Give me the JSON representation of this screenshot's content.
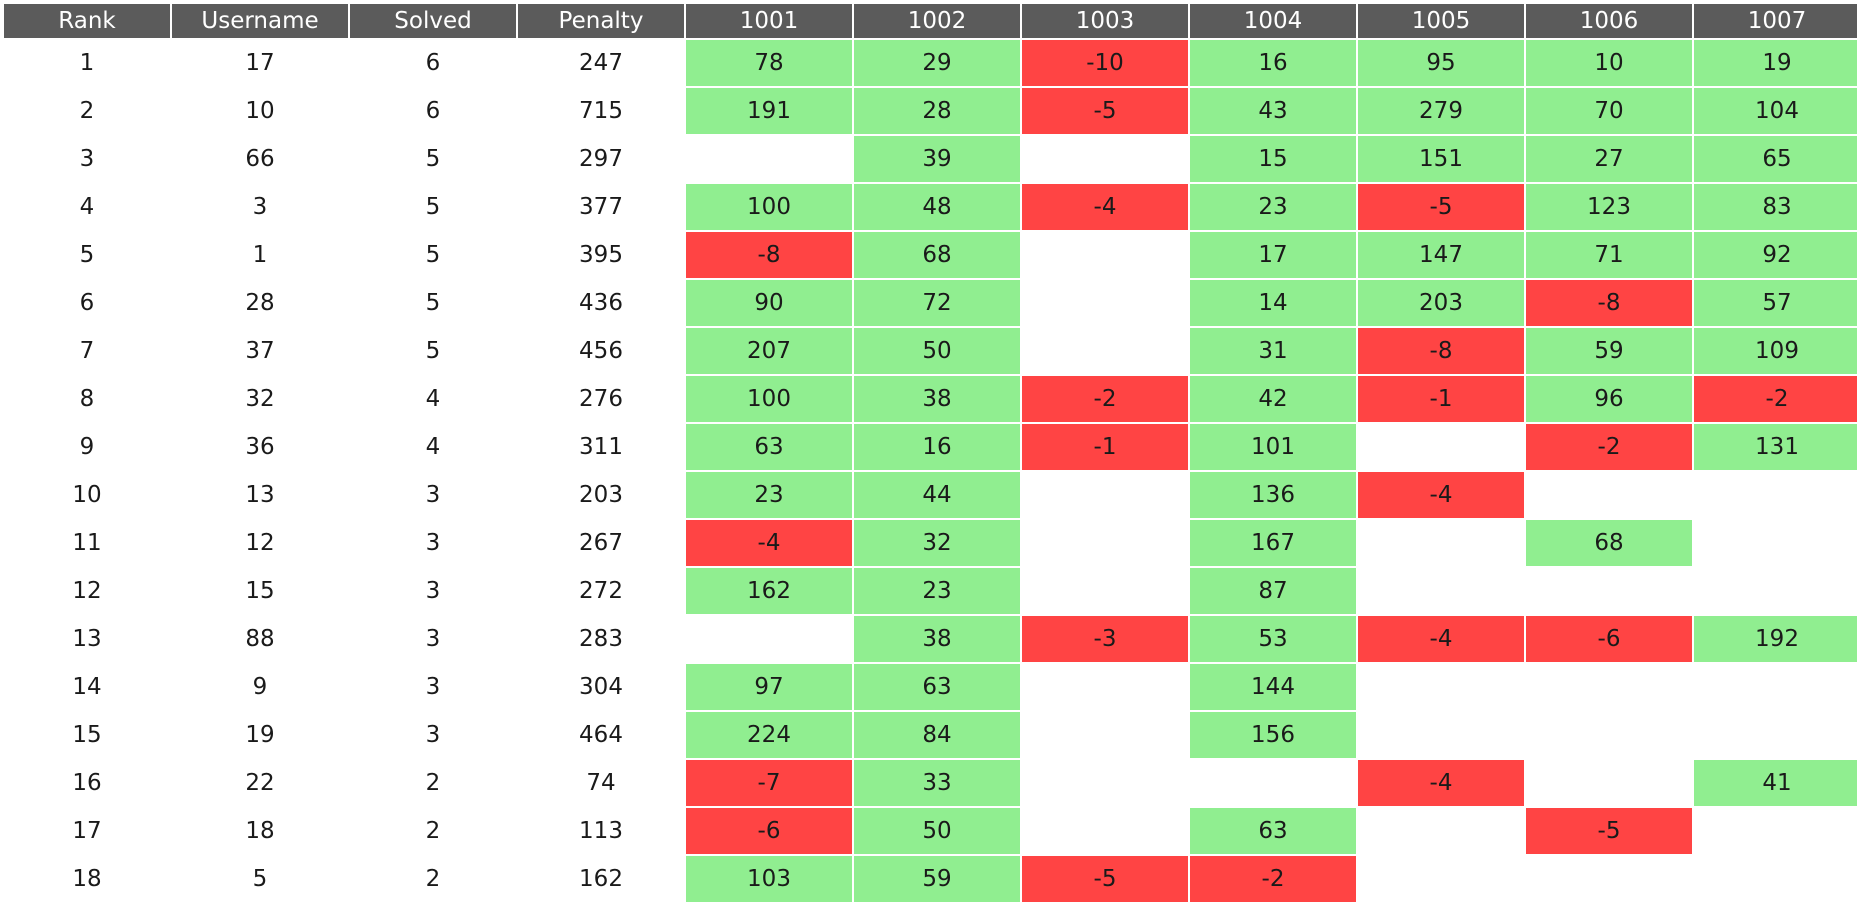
{
  "columns": [
    "Rank",
    "Username",
    "Solved",
    "Penalty",
    "1001",
    "1002",
    "1003",
    "1004",
    "1005",
    "1006",
    "1007"
  ],
  "colors": {
    "header_bg": "#5b5b5b",
    "accepted": "#90ee90",
    "rejected": "#ff4444"
  },
  "rows": [
    {
      "rank": "1",
      "username": "17",
      "solved": "6",
      "penalty": "247",
      "problems": [
        "78",
        "29",
        "-10",
        "16",
        "95",
        "10",
        "19"
      ]
    },
    {
      "rank": "2",
      "username": "10",
      "solved": "6",
      "penalty": "715",
      "problems": [
        "191",
        "28",
        "-5",
        "43",
        "279",
        "70",
        "104"
      ]
    },
    {
      "rank": "3",
      "username": "66",
      "solved": "5",
      "penalty": "297",
      "problems": [
        "",
        "39",
        "",
        "15",
        "151",
        "27",
        "65"
      ]
    },
    {
      "rank": "4",
      "username": "3",
      "solved": "5",
      "penalty": "377",
      "problems": [
        "100",
        "48",
        "-4",
        "23",
        "-5",
        "123",
        "83"
      ]
    },
    {
      "rank": "5",
      "username": "1",
      "solved": "5",
      "penalty": "395",
      "problems": [
        "-8",
        "68",
        "",
        "17",
        "147",
        "71",
        "92"
      ]
    },
    {
      "rank": "6",
      "username": "28",
      "solved": "5",
      "penalty": "436",
      "problems": [
        "90",
        "72",
        "",
        "14",
        "203",
        "-8",
        "57"
      ]
    },
    {
      "rank": "7",
      "username": "37",
      "solved": "5",
      "penalty": "456",
      "problems": [
        "207",
        "50",
        "",
        "31",
        "-8",
        "59",
        "109"
      ]
    },
    {
      "rank": "8",
      "username": "32",
      "solved": "4",
      "penalty": "276",
      "problems": [
        "100",
        "38",
        "-2",
        "42",
        "-1",
        "96",
        "-2"
      ]
    },
    {
      "rank": "9",
      "username": "36",
      "solved": "4",
      "penalty": "311",
      "problems": [
        "63",
        "16",
        "-1",
        "101",
        "",
        "-2",
        "131"
      ]
    },
    {
      "rank": "10",
      "username": "13",
      "solved": "3",
      "penalty": "203",
      "problems": [
        "23",
        "44",
        "",
        "136",
        "-4",
        "",
        ""
      ]
    },
    {
      "rank": "11",
      "username": "12",
      "solved": "3",
      "penalty": "267",
      "problems": [
        "-4",
        "32",
        "",
        "167",
        "",
        "68",
        ""
      ]
    },
    {
      "rank": "12",
      "username": "15",
      "solved": "3",
      "penalty": "272",
      "problems": [
        "162",
        "23",
        "",
        "87",
        "",
        "",
        ""
      ]
    },
    {
      "rank": "13",
      "username": "88",
      "solved": "3",
      "penalty": "283",
      "problems": [
        "",
        "38",
        "-3",
        "53",
        "-4",
        "-6",
        "192"
      ]
    },
    {
      "rank": "14",
      "username": "9",
      "solved": "3",
      "penalty": "304",
      "problems": [
        "97",
        "63",
        "",
        "144",
        "",
        "",
        ""
      ]
    },
    {
      "rank": "15",
      "username": "19",
      "solved": "3",
      "penalty": "464",
      "problems": [
        "224",
        "84",
        "",
        "156",
        "",
        "",
        ""
      ]
    },
    {
      "rank": "16",
      "username": "22",
      "solved": "2",
      "penalty": "74",
      "problems": [
        "-7",
        "33",
        "",
        "",
        "-4",
        "",
        "41"
      ]
    },
    {
      "rank": "17",
      "username": "18",
      "solved": "2",
      "penalty": "113",
      "problems": [
        "-6",
        "50",
        "",
        "63",
        "",
        "-5",
        ""
      ]
    },
    {
      "rank": "18",
      "username": "5",
      "solved": "2",
      "penalty": "162",
      "problems": [
        "103",
        "59",
        "-5",
        "-2",
        "",
        "",
        ""
      ]
    }
  ]
}
